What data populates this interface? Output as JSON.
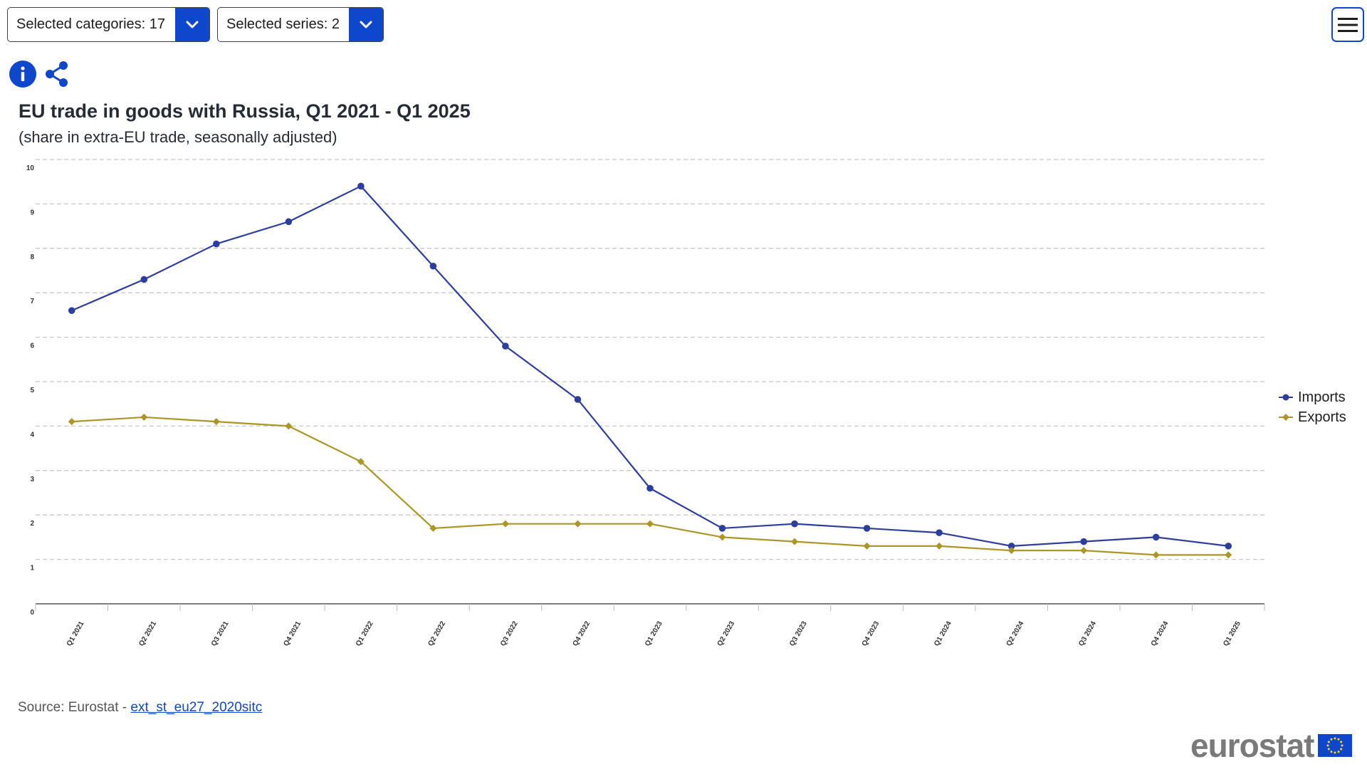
{
  "controls": {
    "categories_label": "Selected categories: 17",
    "series_label": "Selected series: 2"
  },
  "header": {
    "title": "EU trade in goods with Russia, Q1 2021 - Q1 2025",
    "subtitle": "(share in extra-EU trade, seasonally adjusted)"
  },
  "footer": {
    "source_prefix": "Source: Eurostat - ",
    "source_link": "ext_st_eu27_2020sitc",
    "logo_text": "eurostat"
  },
  "icons": {
    "info": "info-icon",
    "share": "share-icon",
    "menu": "hamburger-menu-icon",
    "dropdown": "chevron-down-icon"
  },
  "colors": {
    "imports": "#2d3f9e",
    "exports": "#ad9526",
    "accent": "#0e47cb"
  },
  "chart_data": {
    "type": "line",
    "title": "EU trade in goods with Russia, Q1 2021 - Q1 2025",
    "subtitle": "(share in extra-EU trade, seasonally adjusted)",
    "xlabel": "",
    "ylabel": "",
    "ylim": [
      0,
      10
    ],
    "yticks": [
      0,
      1,
      2,
      3,
      4,
      5,
      6,
      7,
      8,
      9,
      10
    ],
    "grid": true,
    "legend_position": "right",
    "categories": [
      "Q1 2021",
      "Q2 2021",
      "Q3 2021",
      "Q4 2021",
      "Q1 2022",
      "Q2 2022",
      "Q3 2022",
      "Q4 2022",
      "Q1 2023",
      "Q2 2023",
      "Q3 2023",
      "Q4 2023",
      "Q1 2024",
      "Q2 2024",
      "Q3 2024",
      "Q4 2024",
      "Q1 2025"
    ],
    "series": [
      {
        "name": "Imports",
        "marker": "circle",
        "values": [
          6.6,
          7.3,
          8.1,
          8.6,
          9.4,
          7.6,
          5.8,
          4.6,
          2.6,
          1.7,
          1.8,
          1.7,
          1.6,
          1.3,
          1.4,
          1.5,
          1.3
        ]
      },
      {
        "name": "Exports",
        "marker": "diamond",
        "values": [
          4.1,
          4.2,
          4.1,
          4.0,
          3.2,
          1.7,
          1.8,
          1.8,
          1.8,
          1.5,
          1.4,
          1.3,
          1.3,
          1.2,
          1.2,
          1.1,
          1.1
        ]
      }
    ]
  }
}
